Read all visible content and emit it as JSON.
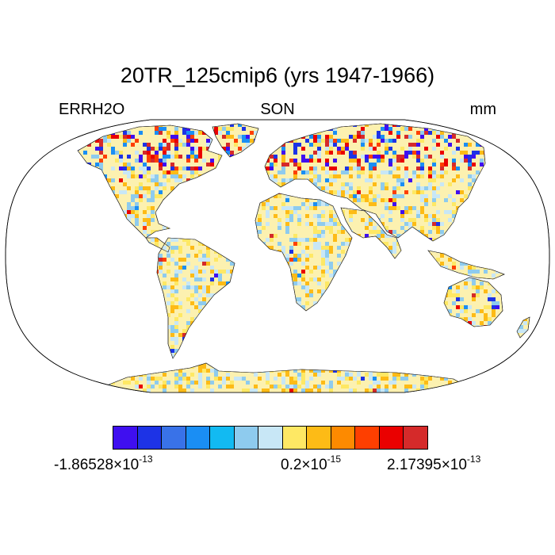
{
  "title": "20TR_125cmip6 (yrs 1947-1966)",
  "labels": {
    "left": "ERRH2O",
    "center": "SON",
    "right": "mm"
  },
  "colorbar": {
    "colors": [
      "#3f0ff0",
      "#1d33e6",
      "#3972e8",
      "#1a8ef4",
      "#12baf2",
      "#8ecbee",
      "#c8e7f6",
      "#fee864",
      "#fdbb16",
      "#fd8a00",
      "#fe3f00",
      "#ea0000",
      "#d52a2a"
    ],
    "labels": {
      "min": {
        "mantissa": "-1.86528",
        "times": "×10",
        "exp": "-13"
      },
      "mid": {
        "mantissa": "0.2",
        "times": "×10",
        "exp": "-15"
      },
      "max": {
        "mantissa": "2.17395",
        "times": "×10",
        "exp": "-13"
      }
    }
  },
  "map": {
    "projection": "Robinson",
    "land_base_color": "#fcf1b0",
    "field_colors": [
      "#c8e7f6",
      "#fee864",
      "#fdbb16",
      "#8ecbee",
      "#fcf1b0"
    ],
    "hotspot_colors": [
      "#3f0ff0",
      "#1d33e6",
      "#d52a2a",
      "#ea0000",
      "#fe3f00",
      "#1a8ef4"
    ]
  }
}
